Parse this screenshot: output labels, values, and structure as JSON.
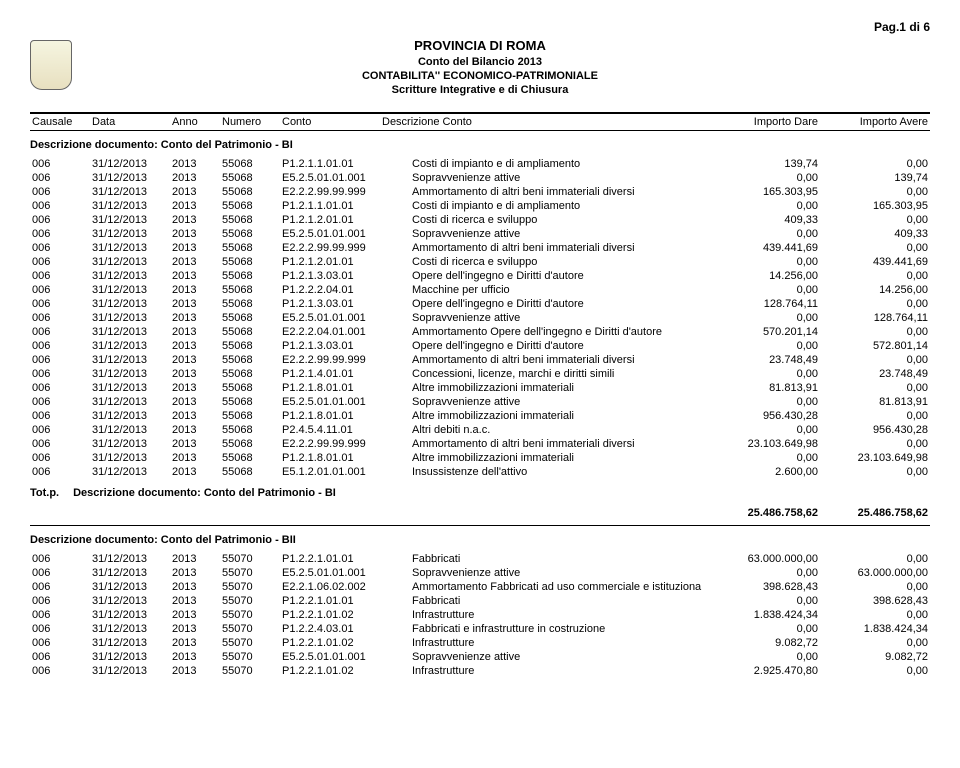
{
  "page_num": "Pag.1 di 6",
  "header": {
    "title": "PROVINCIA DI ROMA",
    "line1": "Conto del Bilancio 2013",
    "line2": "CONTABILITA'' ECONOMICO-PATRIMONIALE",
    "line3": "Scritture Integrative e di Chiusura"
  },
  "cols": {
    "c0": "Causale",
    "c1": "Data",
    "c2": "Anno",
    "c3": "Numero",
    "c4": "Conto",
    "c5": "Descrizione Conto",
    "c6": "Importo Dare",
    "c7": "Importo Avere"
  },
  "section1": {
    "title": "Descrizione documento: Conto del Patrimonio - BI",
    "rows": [
      [
        "006",
        "31/12/2013",
        "2013",
        "55068",
        "P1.2.1.1.01.01",
        "Costi di impianto e di ampliamento",
        "139,74",
        "0,00"
      ],
      [
        "006",
        "31/12/2013",
        "2013",
        "55068",
        "E5.2.5.01.01.001",
        "Sopravvenienze attive",
        "0,00",
        "139,74"
      ],
      [
        "006",
        "31/12/2013",
        "2013",
        "55068",
        "E2.2.2.99.99.999",
        "Ammortamento di altri beni immateriali diversi",
        "165.303,95",
        "0,00"
      ],
      [
        "006",
        "31/12/2013",
        "2013",
        "55068",
        "P1.2.1.1.01.01",
        "Costi di impianto e di ampliamento",
        "0,00",
        "165.303,95"
      ],
      [
        "006",
        "31/12/2013",
        "2013",
        "55068",
        "P1.2.1.2.01.01",
        "Costi di ricerca e sviluppo",
        "409,33",
        "0,00"
      ],
      [
        "006",
        "31/12/2013",
        "2013",
        "55068",
        "E5.2.5.01.01.001",
        "Sopravvenienze attive",
        "0,00",
        "409,33"
      ],
      [
        "006",
        "31/12/2013",
        "2013",
        "55068",
        "E2.2.2.99.99.999",
        "Ammortamento di altri beni immateriali diversi",
        "439.441,69",
        "0,00"
      ],
      [
        "006",
        "31/12/2013",
        "2013",
        "55068",
        "P1.2.1.2.01.01",
        "Costi di ricerca e sviluppo",
        "0,00",
        "439.441,69"
      ],
      [
        "006",
        "31/12/2013",
        "2013",
        "55068",
        "P1.2.1.3.03.01",
        "Opere dell'ingegno e Diritti d'autore",
        "14.256,00",
        "0,00"
      ],
      [
        "006",
        "31/12/2013",
        "2013",
        "55068",
        "P1.2.2.2.04.01",
        "Macchine per ufficio",
        "0,00",
        "14.256,00"
      ],
      [
        "006",
        "31/12/2013",
        "2013",
        "55068",
        "P1.2.1.3.03.01",
        "Opere dell'ingegno e Diritti d'autore",
        "128.764,11",
        "0,00"
      ],
      [
        "006",
        "31/12/2013",
        "2013",
        "55068",
        "E5.2.5.01.01.001",
        "Sopravvenienze attive",
        "0,00",
        "128.764,11"
      ],
      [
        "006",
        "31/12/2013",
        "2013",
        "55068",
        "E2.2.2.04.01.001",
        "Ammortamento Opere dell'ingegno e Diritti d'autore",
        "570.201,14",
        "0,00"
      ],
      [
        "006",
        "31/12/2013",
        "2013",
        "55068",
        "P1.2.1.3.03.01",
        "Opere dell'ingegno e Diritti d'autore",
        "0,00",
        "572.801,14"
      ],
      [
        "006",
        "31/12/2013",
        "2013",
        "55068",
        "E2.2.2.99.99.999",
        "Ammortamento di altri beni immateriali diversi",
        "23.748,49",
        "0,00"
      ],
      [
        "006",
        "31/12/2013",
        "2013",
        "55068",
        "P1.2.1.4.01.01",
        "Concessioni, licenze, marchi e diritti simili",
        "0,00",
        "23.748,49"
      ],
      [
        "006",
        "31/12/2013",
        "2013",
        "55068",
        "P1.2.1.8.01.01",
        "Altre immobilizzazioni immateriali",
        "81.813,91",
        "0,00"
      ],
      [
        "006",
        "31/12/2013",
        "2013",
        "55068",
        "E5.2.5.01.01.001",
        "Sopravvenienze attive",
        "0,00",
        "81.813,91"
      ],
      [
        "006",
        "31/12/2013",
        "2013",
        "55068",
        "P1.2.1.8.01.01",
        "Altre immobilizzazioni immateriali",
        "956.430,28",
        "0,00"
      ],
      [
        "006",
        "31/12/2013",
        "2013",
        "55068",
        "P2.4.5.4.11.01",
        "Altri debiti n.a.c.",
        "0,00",
        "956.430,28"
      ],
      [
        "006",
        "31/12/2013",
        "2013",
        "55068",
        "E2.2.2.99.99.999",
        "Ammortamento di altri beni immateriali diversi",
        "23.103.649,98",
        "0,00"
      ],
      [
        "006",
        "31/12/2013",
        "2013",
        "55068",
        "P1.2.1.8.01.01",
        "Altre immobilizzazioni immateriali",
        "0,00",
        "23.103.649,98"
      ],
      [
        "006",
        "31/12/2013",
        "2013",
        "55068",
        "E5.1.2.01.01.001",
        "Insussistenze dell'attivo",
        "2.600,00",
        "0,00"
      ]
    ],
    "tot_prefix": "Tot.p.",
    "tot_label": "Descrizione documento: Conto del Patrimonio - BI",
    "tot_dare": "25.486.758,62",
    "tot_avere": "25.486.758,62"
  },
  "section2": {
    "title": "Descrizione documento: Conto del Patrimonio - BII",
    "rows": [
      [
        "006",
        "31/12/2013",
        "2013",
        "55070",
        "P1.2.2.1.01.01",
        "Fabbricati",
        "63.000.000,00",
        "0,00"
      ],
      [
        "006",
        "31/12/2013",
        "2013",
        "55070",
        "E5.2.5.01.01.001",
        "Sopravvenienze attive",
        "0,00",
        "63.000.000,00"
      ],
      [
        "006",
        "31/12/2013",
        "2013",
        "55070",
        "E2.2.1.06.02.002",
        "Ammortamento Fabbricati ad uso commerciale e istituziona",
        "398.628,43",
        "0,00"
      ],
      [
        "006",
        "31/12/2013",
        "2013",
        "55070",
        "P1.2.2.1.01.01",
        "Fabbricati",
        "0,00",
        "398.628,43"
      ],
      [
        "006",
        "31/12/2013",
        "2013",
        "55070",
        "P1.2.2.1.01.02",
        "Infrastrutture",
        "1.838.424,34",
        "0,00"
      ],
      [
        "006",
        "31/12/2013",
        "2013",
        "55070",
        "P1.2.2.4.03.01",
        "Fabbricati e infrastrutture in costruzione",
        "0,00",
        "1.838.424,34"
      ],
      [
        "006",
        "31/12/2013",
        "2013",
        "55070",
        "P1.2.2.1.01.02",
        "Infrastrutture",
        "9.082,72",
        "0,00"
      ],
      [
        "006",
        "31/12/2013",
        "2013",
        "55070",
        "E5.2.5.01.01.001",
        "Sopravvenienze attive",
        "0,00",
        "9.082,72"
      ],
      [
        "006",
        "31/12/2013",
        "2013",
        "55070",
        "P1.2.2.1.01.02",
        "Infrastrutture",
        "2.925.470,80",
        "0,00"
      ]
    ]
  }
}
